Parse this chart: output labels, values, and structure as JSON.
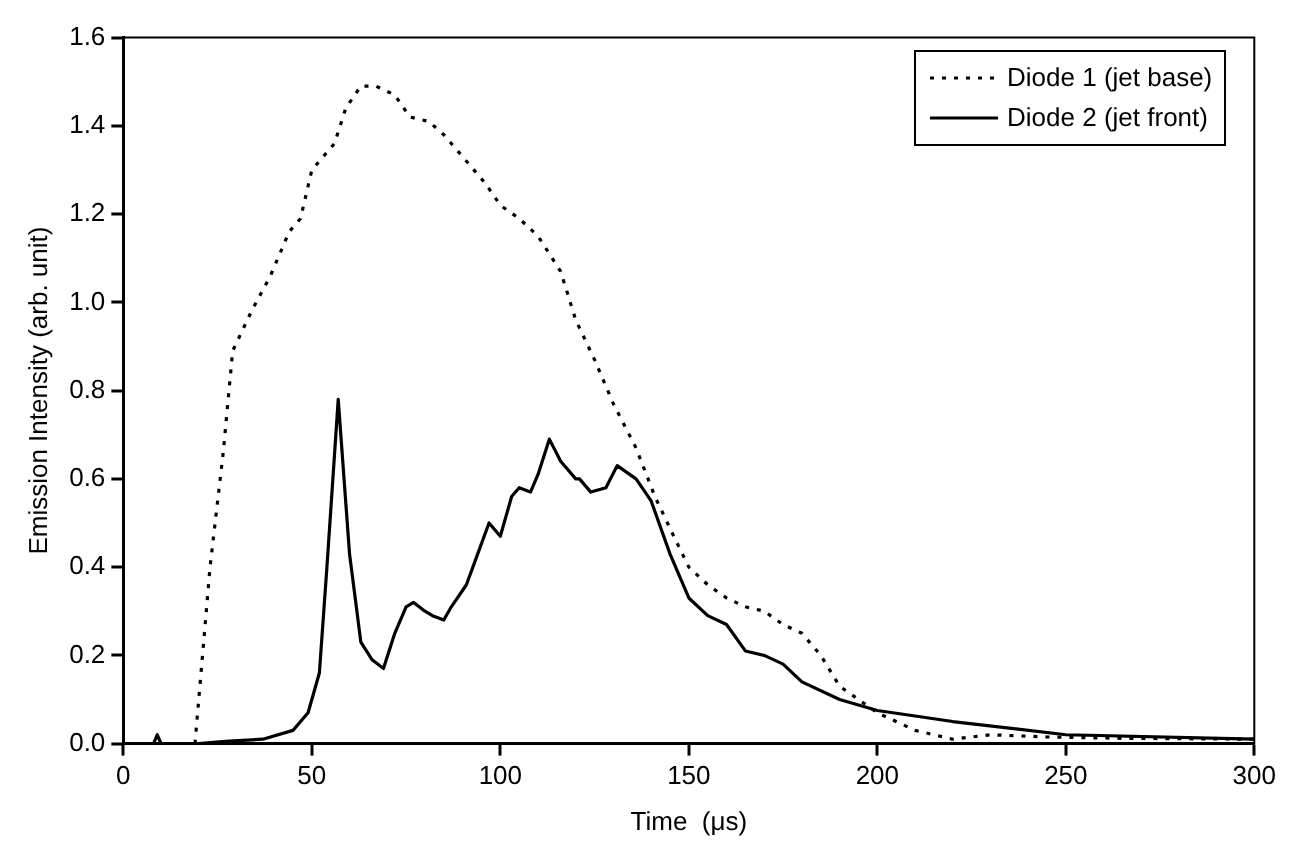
{
  "chart_data": {
    "type": "line",
    "xlabel": "Time  (μs)",
    "ylabel": "Emission Intensity (arb. unit)",
    "xlim": [
      0,
      300
    ],
    "xticks": [
      0,
      50,
      100,
      150,
      200,
      250,
      300
    ],
    "ylim": [
      0,
      1.6
    ],
    "yticks": [
      {
        "value": 0,
        "label": "0.0"
      },
      0.2,
      0.4,
      0.6,
      0.8,
      {
        "value": 1,
        "label": "1.0"
      },
      1.2,
      1.4,
      1.6
    ],
    "grid": false,
    "legend": "top right",
    "marker": "none",
    "series": [
      {
        "name": "Diode 1 (jet base)",
        "color": "#000000",
        "line_style": "dotted",
        "x": [
          19,
          23,
          26.5,
          29,
          34,
          39,
          44,
          47,
          50,
          56,
          59,
          63,
          67,
          72,
          76,
          81,
          85,
          90,
          96,
          100,
          105,
          110,
          116,
          120,
          125,
          130,
          136,
          141,
          146,
          150,
          155,
          160,
          165,
          170,
          175,
          180,
          185,
          190,
          195,
          200,
          205,
          210,
          215,
          220,
          230,
          245,
          265,
          300
        ],
        "values": [
          0,
          0.4,
          0.66,
          0.89,
          0.98,
          1.06,
          1.16,
          1.19,
          1.3,
          1.36,
          1.44,
          1.49,
          1.49,
          1.47,
          1.42,
          1.41,
          1.38,
          1.33,
          1.27,
          1.22,
          1.19,
          1.15,
          1.07,
          0.96,
          0.87,
          0.77,
          0.67,
          0.56,
          0.47,
          0.4,
          0.36,
          0.33,
          0.31,
          0.3,
          0.27,
          0.25,
          0.2,
          0.13,
          0.1,
          0.07,
          0.05,
          0.03,
          0.02,
          0.01,
          0.02,
          0.015,
          0.012,
          0.01
        ]
      },
      {
        "name": "Diode 2 (jet front)",
        "color": "#000000",
        "line_style": "solid",
        "x": [
          0,
          8,
          9,
          10,
          20,
          27,
          37,
          45,
          49,
          52,
          54,
          57,
          60,
          63,
          66,
          69,
          72,
          75,
          77,
          80,
          82,
          85,
          87,
          91,
          94,
          97,
          100,
          103,
          105,
          108,
          110,
          113,
          116,
          120,
          121,
          124,
          128,
          131,
          136,
          140,
          145,
          150,
          155,
          160,
          165,
          170,
          175,
          180,
          190,
          200,
          220,
          250,
          300
        ],
        "values": [
          0,
          0,
          0.02,
          0,
          0,
          0.005,
          0.01,
          0.03,
          0.07,
          0.16,
          0.4,
          0.78,
          0.43,
          0.23,
          0.19,
          0.17,
          0.25,
          0.31,
          0.32,
          0.3,
          0.29,
          0.28,
          0.31,
          0.36,
          0.43,
          0.5,
          0.47,
          0.56,
          0.58,
          0.57,
          0.61,
          0.69,
          0.64,
          0.6,
          0.6,
          0.57,
          0.58,
          0.63,
          0.6,
          0.55,
          0.43,
          0.33,
          0.29,
          0.27,
          0.21,
          0.2,
          0.18,
          0.14,
          0.1,
          0.075,
          0.05,
          0.02,
          0.01
        ]
      }
    ]
  }
}
